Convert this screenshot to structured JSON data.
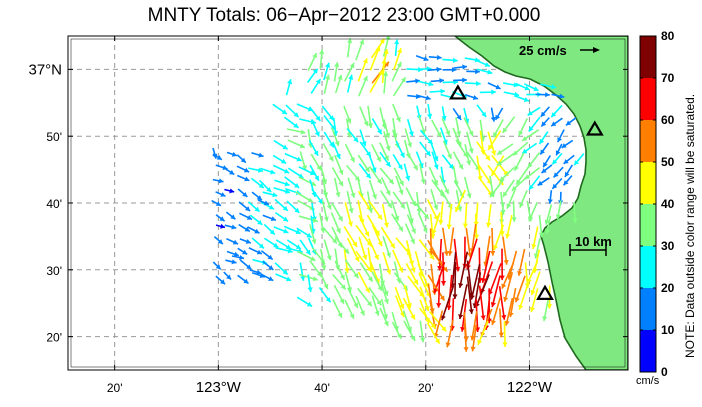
{
  "title": "MNTY Totals: 06−Apr−2012 23:00 GMT+0.000",
  "scale_arrow_label": "25 cm/s",
  "distance_scale_label": "10 km",
  "colorbar": {
    "ticks": [
      "80",
      "70",
      "60",
      "50",
      "40",
      "30",
      "20",
      "10",
      "0"
    ],
    "colors": [
      "#7f0000",
      "#ff0000",
      "#ff7f00",
      "#ffff00",
      "#7fff7f",
      "#00ffff",
      "#007fff",
      "#0000ff"
    ],
    "units": "cm/s",
    "note": "NOTE: Data outside color range will be saturated."
  },
  "axes": {
    "lat_labels": [
      "37°N",
      "50'",
      "40'",
      "30'",
      "20'"
    ],
    "lon_labels": [
      "20'",
      "123°W",
      "40'",
      "20'",
      "122°W"
    ],
    "lat_values": [
      37.0,
      36.8333,
      36.6667,
      36.5,
      36.3333
    ],
    "lon_values": [
      -123.3333,
      -123.0,
      -122.6667,
      -122.3333,
      -122.0
    ],
    "lon_range": [
      -123.4833,
      -121.6833
    ],
    "lat_range": [
      36.25,
      37.0833
    ]
  },
  "colors": {
    "land": "#80e880",
    "land_edge": "#1e6a1e",
    "grid": "#9a9a9a"
  },
  "sites": [
    {
      "name": "radar-site-north",
      "lon": -122.23,
      "lat": 36.94
    },
    {
      "name": "radar-site-east",
      "lon": -121.79,
      "lat": 36.85
    },
    {
      "name": "radar-site-south",
      "lon": -121.95,
      "lat": 36.44
    }
  ]
}
